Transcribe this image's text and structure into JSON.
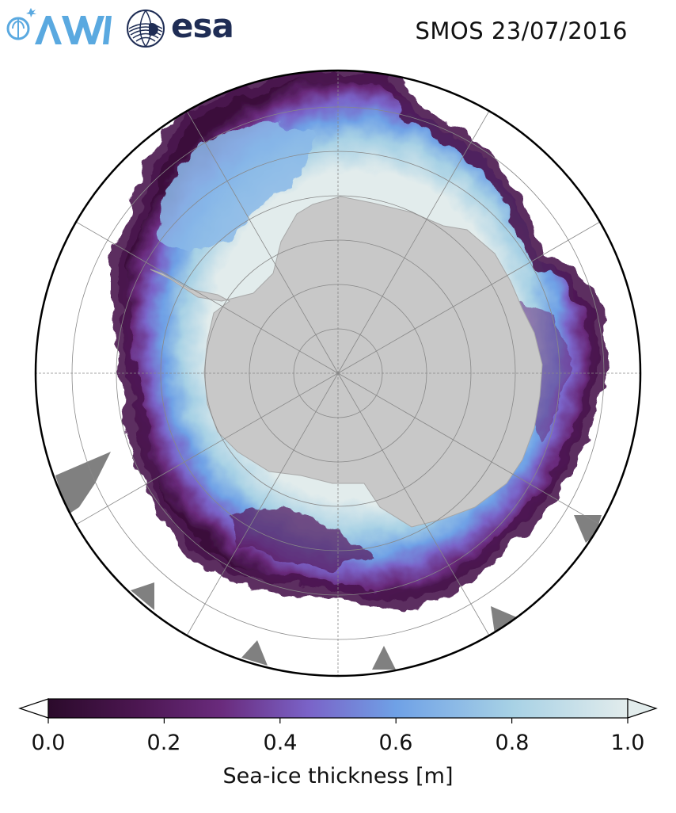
{
  "header": {
    "title": "SMOS 23/07/2016",
    "logos": [
      {
        "name": "AWI",
        "text": "AWI",
        "color": "#5aa9e0"
      },
      {
        "name": "esa",
        "text": "esa",
        "color": "#1f2d55"
      }
    ]
  },
  "map": {
    "projection": "south-polar-stereographic",
    "land_color": "#c8c8c8",
    "other_land_color": "#808080",
    "ocean_color": "#ffffff",
    "graticule": true
  },
  "colorbar": {
    "label": "Sea-ice thickness [m]",
    "range": [
      0.0,
      1.0
    ],
    "ticks": [
      "0.0",
      "0.2",
      "0.4",
      "0.6",
      "0.8",
      "1.0"
    ],
    "colormap": [
      "#2b0a2b",
      "#4b1650",
      "#6a2b7d",
      "#7a63c8",
      "#6fa1e6",
      "#a7d1e5",
      "#e2ecec"
    ],
    "extend": "both"
  }
}
